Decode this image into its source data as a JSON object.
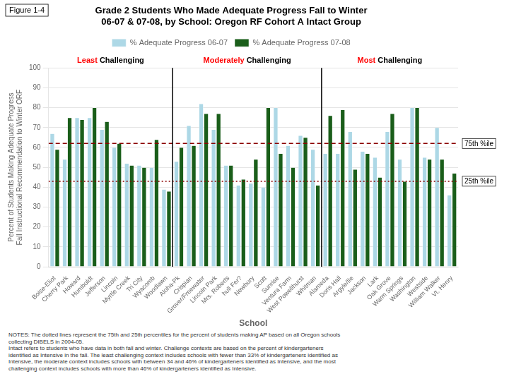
{
  "chart_data": {
    "type": "bar",
    "title": "Grade 2 Students Who Made Adequate Progress Fall to Winter\n06-07 & 07-08, by School: Oregon RF Cohort A Intact Group",
    "figure_label": "Figure 1-4",
    "xlabel": "School",
    "ylabel": "Percent of Students Making Adequate Progress\nFall Instructional Recommendation to Winter ORF",
    "categories": [
      "Boise-Eliot",
      "Cherry Park",
      "Howard",
      "Humboldt",
      "Jefferson",
      "Lincoln",
      "Myrtle Creek",
      "Tri City",
      "Wyacomb",
      "Woodlawn",
      "Aloha-Pk",
      "Crispian",
      "Grover/Freewater",
      "Lincoln Park",
      "Mrs. Roberts",
      "hull Fer?",
      "Newbury",
      "Scott",
      "Sunrise",
      "Ventura Farm",
      "West Powellhurst",
      "Whitman",
      "Alameda",
      "Doris Hall",
      "Argyle/Ile",
      "Jackson",
      "Lark",
      "Oak Grove",
      "Warm Springs",
      "Washington",
      "Westside",
      "William Walker",
      "Vt. Henry"
    ],
    "series": [
      {
        "name": "% Adequate Progress 06-07",
        "color": "#add8e6",
        "values": [
          67,
          54,
          75,
          75,
          69,
          60,
          52,
          51,
          50,
          39,
          53,
          71,
          82,
          69,
          51,
          41,
          42,
          40,
          80,
          61,
          66,
          59,
          57,
          57,
          68,
          58,
          55,
          68,
          54,
          80,
          55,
          70,
          36
        ]
      },
      {
        "name": "% Adequate Progress 07-08",
        "color": "#1a5e1a",
        "values": [
          59,
          75,
          74,
          80,
          73,
          62,
          51,
          50,
          64,
          38,
          60,
          61,
          77,
          77,
          51,
          44,
          54,
          80,
          57,
          50,
          65,
          41,
          76,
          79,
          49,
          57,
          45,
          77,
          43,
          80,
          54,
          54,
          47
        ]
      }
    ],
    "ylim": [
      0,
      100
    ],
    "yticks": [
      0,
      10,
      20,
      30,
      40,
      50,
      60,
      70,
      80,
      90,
      100
    ],
    "grid": true,
    "legend": "top",
    "reference_lines": [
      {
        "value": 62,
        "label": "75th %ile",
        "color": "#8b0000",
        "line_style": "dashed"
      },
      {
        "value": 43,
        "label": "25th %ile",
        "color": "#8b0000",
        "line_style": "dotted"
      }
    ],
    "groups": [
      {
        "label": "Least Challenging",
        "start": 0,
        "colors": [
          "red",
          "black"
        ]
      },
      {
        "label": "Moderately Challenging",
        "start": 10,
        "colors": [
          "red",
          "black"
        ]
      },
      {
        "label": "Most Challenging",
        "start": 22,
        "colors": [
          "red",
          "black"
        ]
      }
    ],
    "notes": "NOTES:  The dotted lines represent the 75th and 25th percentiles for the percent of students making AP based on all Oregon schools\ncollecting DIBELS in 2004-05.\nIntact refers to students who have data in both fall and winter. Challenge contexts are based on the percent of kindergarteners\nidentified as Intensive in the fall. The least challenging context includes schools with fewer than 33% of kindergarteners identified as\nIntensive, the moderate context includes schools with between 34 and 46% of kindergarteners identified as Intensive, and the most\nchallenging context includes schools with more than 46% of kindergarteners identified as Intensive."
  }
}
